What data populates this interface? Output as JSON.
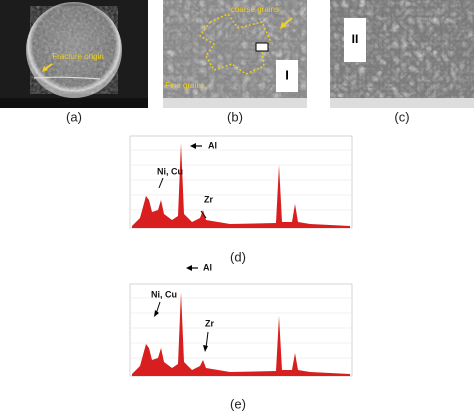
{
  "panels": [
    {
      "caption": "(a)",
      "annotations": [
        "Fracture origin"
      ]
    },
    {
      "caption": "(b)",
      "annotations": [
        "coarse grains",
        "Fine grains",
        "I"
      ]
    },
    {
      "caption": "(c)",
      "annotations": [
        "II"
      ]
    },
    {
      "caption": "(d)",
      "annotations": [
        "Al",
        "Ni, Cu",
        "Zr"
      ]
    },
    {
      "caption": "(e)",
      "annotations": [
        "Al",
        "Ni, Cu",
        "Zr"
      ]
    }
  ]
}
